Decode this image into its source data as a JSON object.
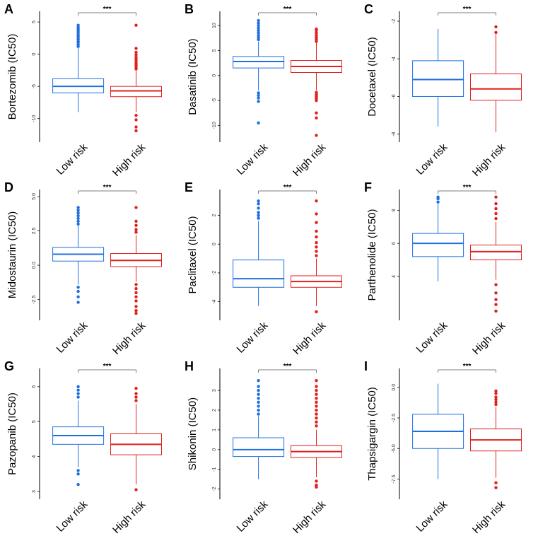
{
  "figure": {
    "group_colors": {
      "low": "#1f6fe0",
      "high": "#e0201f"
    }
  },
  "chart_data": [
    {
      "letter": "A",
      "type": "boxplot",
      "ylabel": "Bortezomib (IC50)",
      "ylim": [
        -13,
        6
      ],
      "ticks": [
        5,
        0,
        -5,
        -10
      ],
      "tick_labels": [
        "5",
        "0",
        "-5",
        "-10"
      ],
      "categories": [
        "Low risk",
        "High risk"
      ],
      "significance": "***",
      "groups": [
        {
          "name": "Low risk",
          "color": "#1f6fe0",
          "whisker_low": -9.0,
          "q1": -6.0,
          "median": -5.0,
          "q3": -3.8,
          "whisker_high": 1.0,
          "outliers": [
            1.2,
            1.5,
            1.8,
            2.0,
            2.3,
            2.5,
            2.8,
            3.0,
            3.3,
            3.6,
            3.9,
            4.2,
            4.5
          ]
        },
        {
          "name": "High risk",
          "color": "#e0201f",
          "whisker_low": -9.0,
          "q1": -6.6,
          "median": -5.7,
          "q3": -5.0,
          "whisker_high": -2.6,
          "outliers": [
            -2.3,
            -2.0,
            -1.7,
            -1.4,
            -1.1,
            -0.8,
            -0.5,
            -0.1,
            0.3,
            0.9,
            4.5,
            -9.5,
            -10.2,
            -11.3,
            -11.9
          ]
        }
      ]
    },
    {
      "letter": "B",
      "type": "boxplot",
      "ylabel": "Dasatinib (IC50)",
      "ylim": [
        -12.5,
        12
      ],
      "ticks": [
        10,
        5,
        0,
        -5,
        -10
      ],
      "tick_labels": [
        "10",
        "5",
        "0",
        "-5",
        "-10"
      ],
      "categories": [
        "Low risk",
        "High risk"
      ],
      "significance": "***",
      "groups": [
        {
          "name": "Low risk",
          "color": "#1f6fe0",
          "whisker_low": -3.0,
          "q1": 1.5,
          "median": 2.8,
          "q3": 3.8,
          "whisker_high": 6.8,
          "outliers": [
            7.2,
            7.6,
            8.0,
            8.5,
            9.0,
            9.5,
            10.0,
            10.5,
            11.0,
            -3.5,
            -4.0,
            -4.5,
            -5.2,
            -9.5
          ]
        },
        {
          "name": "High risk",
          "color": "#e0201f",
          "whisker_low": -3.0,
          "q1": 0.6,
          "median": 1.8,
          "q3": 3.0,
          "whisker_high": 6.5,
          "outliers": [
            6.8,
            7.2,
            7.6,
            8.0,
            8.5,
            9.0,
            9.3,
            -3.4,
            -3.8,
            -4.2,
            -4.6,
            -5.0,
            -7.5,
            -8.5,
            -12.0
          ]
        }
      ]
    },
    {
      "letter": "C",
      "type": "boxplot",
      "ylabel": "Docetaxel (IC50)",
      "ylim": [
        -8.2,
        -1.7
      ],
      "ticks": [
        -2,
        -4,
        -6,
        -8
      ],
      "tick_labels": [
        "-2",
        "-4",
        "-6",
        "-8"
      ],
      "categories": [
        "Low risk",
        "High risk"
      ],
      "significance": "***",
      "groups": [
        {
          "name": "Low risk",
          "color": "#1f6fe0",
          "whisker_low": -7.6,
          "q1": -6.0,
          "median": -5.1,
          "q3": -4.1,
          "whisker_high": -2.4,
          "outliers": []
        },
        {
          "name": "High risk",
          "color": "#e0201f",
          "whisker_low": -7.9,
          "q1": -6.2,
          "median": -5.6,
          "q3": -4.8,
          "whisker_high": -2.7,
          "outliers": [
            -2.6,
            -2.3
          ]
        }
      ]
    },
    {
      "letter": "D",
      "type": "boxplot",
      "ylabel": "Midostaurin (IC50)",
      "ylim": [
        -3.7,
        5.2
      ],
      "ticks": [
        5,
        2.5,
        0,
        -2.5
      ],
      "tick_labels": [
        "5.0",
        "2.5",
        "0.0",
        "-2.5"
      ],
      "categories": [
        "Low risk",
        "High risk"
      ],
      "significance": "***",
      "groups": [
        {
          "name": "Low risk",
          "color": "#1f6fe0",
          "whisker_low": -1.4,
          "q1": 0.3,
          "median": 0.8,
          "q3": 1.3,
          "whisker_high": 2.9,
          "outliers": [
            3.0,
            3.2,
            3.4,
            3.6,
            3.8,
            4.0,
            4.2,
            -1.6,
            -1.9,
            -2.3,
            -2.7
          ]
        },
        {
          "name": "High risk",
          "color": "#e0201f",
          "whisker_low": -1.2,
          "q1": -0.1,
          "median": 0.35,
          "q3": 0.85,
          "whisker_high": 2.2,
          "outliers": [
            2.4,
            2.6,
            2.9,
            3.2,
            4.2,
            -1.4,
            -1.7,
            -2.0,
            -2.3,
            -2.6,
            -3.0,
            -3.3,
            -3.5
          ]
        }
      ]
    },
    {
      "letter": "E",
      "type": "boxplot",
      "ylabel": "Paclitaxel (IC50)",
      "ylim": [
        -5.0,
        3.5
      ],
      "ticks": [
        2,
        0,
        -2,
        -4
      ],
      "tick_labels": [
        "2",
        "0",
        "-2",
        "-4"
      ],
      "categories": [
        "Low risk",
        "High risk"
      ],
      "significance": "***",
      "groups": [
        {
          "name": "Low risk",
          "color": "#1f6fe0",
          "whisker_low": -4.3,
          "q1": -3.0,
          "median": -2.4,
          "q3": -1.1,
          "whisker_high": 1.6,
          "outliers": [
            1.8,
            2.0,
            2.2,
            2.5,
            2.8,
            3.0
          ]
        },
        {
          "name": "High risk",
          "color": "#e0201f",
          "whisker_low": -4.3,
          "q1": -3.0,
          "median": -2.6,
          "q3": -2.2,
          "whisker_high": -1.0,
          "outliers": [
            -0.8,
            -0.5,
            -0.2,
            0.1,
            0.5,
            0.9,
            1.5,
            2.1,
            3.0,
            -4.7
          ]
        }
      ]
    },
    {
      "letter": "F",
      "type": "boxplot",
      "ylabel": "Parthenolide (IC50)",
      "ylim": [
        1.6,
        9.0
      ],
      "ticks": [
        8,
        6,
        4
      ],
      "tick_labels": [
        "8",
        "6",
        "4"
      ],
      "categories": [
        "Low risk",
        "High risk"
      ],
      "significance": "***",
      "groups": [
        {
          "name": "Low risk",
          "color": "#1f6fe0",
          "whisker_low": 3.7,
          "q1": 5.2,
          "median": 6.0,
          "q3": 6.6,
          "whisker_high": 8.4,
          "outliers": [
            8.5,
            8.7,
            8.8
          ]
        },
        {
          "name": "High risk",
          "color": "#e0201f",
          "whisker_low": 3.8,
          "q1": 5.0,
          "median": 5.5,
          "q3": 5.9,
          "whisker_high": 7.3,
          "outliers": [
            7.5,
            7.8,
            8.1,
            8.4,
            8.8,
            3.5,
            3.0,
            2.6,
            2.3,
            1.9
          ]
        }
      ]
    },
    {
      "letter": "G",
      "type": "boxplot",
      "ylabel": "Pazopanib (IC50)",
      "ylim": [
        2.9,
        6.4
      ],
      "ticks": [
        6,
        5,
        4,
        3
      ],
      "tick_labels": [
        "6",
        "5",
        "4",
        "3"
      ],
      "categories": [
        "Low risk",
        "High risk"
      ],
      "significance": "***",
      "groups": [
        {
          "name": "Low risk",
          "color": "#1f6fe0",
          "whisker_low": 3.7,
          "q1": 4.35,
          "median": 4.6,
          "q3": 4.85,
          "whisker_high": 5.6,
          "outliers": [
            5.7,
            5.8,
            5.9,
            6.0,
            3.6,
            3.5,
            3.2
          ]
        },
        {
          "name": "High risk",
          "color": "#e0201f",
          "whisker_low": 3.2,
          "q1": 4.05,
          "median": 4.35,
          "q3": 4.65,
          "whisker_high": 5.5,
          "outliers": [
            5.6,
            5.7,
            5.8,
            5.95,
            3.05
          ]
        }
      ]
    },
    {
      "letter": "H",
      "type": "boxplot",
      "ylabel": "Shikonin (IC50)",
      "ylim": [
        -2.3,
        3.9
      ],
      "ticks": [
        3,
        2,
        1,
        0,
        -1,
        -2
      ],
      "tick_labels": [
        "3",
        "2",
        "1",
        "0",
        "-1",
        "-2"
      ],
      "categories": [
        "Low risk",
        "High risk"
      ],
      "significance": "***",
      "groups": [
        {
          "name": "Low risk",
          "color": "#1f6fe0",
          "whisker_low": -1.5,
          "q1": -0.35,
          "median": 0.0,
          "q3": 0.6,
          "whisker_high": 1.7,
          "outliers": [
            1.8,
            2.0,
            2.2,
            2.4,
            2.6,
            2.8,
            3.0,
            3.2,
            3.5
          ]
        },
        {
          "name": "High risk",
          "color": "#e0201f",
          "whisker_low": -1.4,
          "q1": -0.4,
          "median": -0.1,
          "q3": 0.2,
          "whisker_high": 1.0,
          "outliers": [
            1.2,
            1.4,
            1.6,
            1.8,
            2.0,
            2.2,
            2.4,
            2.6,
            2.8,
            3.0,
            3.2,
            3.5,
            -1.6,
            -1.8,
            -1.9
          ]
        }
      ]
    },
    {
      "letter": "I",
      "type": "boxplot",
      "ylabel": "Thapsigargin (IC50)",
      "ylim": [
        -8.8,
        1.2
      ],
      "ticks": [
        0,
        -2.5,
        -5,
        -7.5
      ],
      "tick_labels": [
        "0.0",
        "-2.5",
        "-5.0",
        "-7.5"
      ],
      "categories": [
        "Low risk",
        "High risk"
      ],
      "significance": "***",
      "groups": [
        {
          "name": "Low risk",
          "color": "#1f6fe0",
          "whisker_low": -7.5,
          "q1": -5.0,
          "median": -3.6,
          "q3": -2.2,
          "whisker_high": 0.3,
          "outliers": []
        },
        {
          "name": "High risk",
          "color": "#e0201f",
          "whisker_low": -7.4,
          "q1": -5.2,
          "median": -4.3,
          "q3": -3.4,
          "whisker_high": -1.6,
          "outliers": [
            -1.4,
            -1.2,
            -1.0,
            -0.8,
            -0.5,
            -0.3,
            -7.8,
            -8.2
          ]
        }
      ]
    }
  ]
}
